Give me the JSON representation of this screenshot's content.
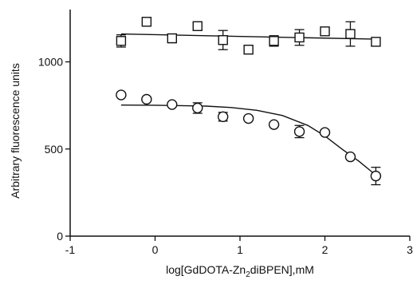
{
  "chart_data": {
    "type": "scatter",
    "title": "",
    "xlabel": "log[GdDOTA-Zn",
    "xlabel_sub": "2",
    "xlabel_rest": "diBPEN],mM",
    "ylabel": "Arbitrary fluorescence units",
    "xlim": [
      -1,
      3
    ],
    "ylim": [
      0,
      1300
    ],
    "x_ticks": [
      -1,
      0,
      1,
      2,
      3
    ],
    "x_tick_labels": [
      "-1",
      "0",
      "1",
      "2",
      "3"
    ],
    "y_ticks": [
      0,
      500,
      1000
    ],
    "y_tick_labels": [
      "0",
      "500",
      "1000"
    ],
    "grid": false,
    "legend": "none",
    "series": [
      {
        "marker": "square",
        "points": [
          {
            "x": -0.4,
            "y": 1120,
            "err": 35
          },
          {
            "x": -0.1,
            "y": 1230,
            "err": 0
          },
          {
            "x": 0.2,
            "y": 1135,
            "err": 25
          },
          {
            "x": 0.5,
            "y": 1205,
            "err": 0
          },
          {
            "x": 0.8,
            "y": 1125,
            "err": 55
          },
          {
            "x": 1.1,
            "y": 1070,
            "err": 0
          },
          {
            "x": 1.4,
            "y": 1120,
            "err": 30
          },
          {
            "x": 1.7,
            "y": 1140,
            "err": 45
          },
          {
            "x": 2.0,
            "y": 1175,
            "err": 0
          },
          {
            "x": 2.3,
            "y": 1160,
            "err": 70
          },
          {
            "x": 2.6,
            "y": 1115,
            "err": 0
          }
        ],
        "fit": [
          {
            "x": -0.4,
            "y": 1160
          },
          {
            "x": 2.6,
            "y": 1130
          }
        ]
      },
      {
        "marker": "circle",
        "points": [
          {
            "x": -0.4,
            "y": 810,
            "err": 0
          },
          {
            "x": -0.1,
            "y": 785,
            "err": 0
          },
          {
            "x": 0.2,
            "y": 755,
            "err": 0
          },
          {
            "x": 0.5,
            "y": 735,
            "err": 30
          },
          {
            "x": 0.8,
            "y": 685,
            "err": 25
          },
          {
            "x": 1.1,
            "y": 675,
            "err": 0
          },
          {
            "x": 1.4,
            "y": 640,
            "err": 0
          },
          {
            "x": 1.7,
            "y": 600,
            "err": 35
          },
          {
            "x": 2.0,
            "y": 595,
            "err": 0
          },
          {
            "x": 2.3,
            "y": 455,
            "err": 0
          },
          {
            "x": 2.6,
            "y": 345,
            "err": 50
          }
        ],
        "fit": [
          {
            "x": -0.4,
            "y": 752
          },
          {
            "x": 0.0,
            "y": 751
          },
          {
            "x": 0.3,
            "y": 749
          },
          {
            "x": 0.6,
            "y": 746
          },
          {
            "x": 0.9,
            "y": 738
          },
          {
            "x": 1.2,
            "y": 722
          },
          {
            "x": 1.5,
            "y": 692
          },
          {
            "x": 1.8,
            "y": 635
          },
          {
            "x": 2.0,
            "y": 575
          },
          {
            "x": 2.2,
            "y": 500
          },
          {
            "x": 2.4,
            "y": 430
          },
          {
            "x": 2.6,
            "y": 350
          }
        ]
      }
    ]
  }
}
